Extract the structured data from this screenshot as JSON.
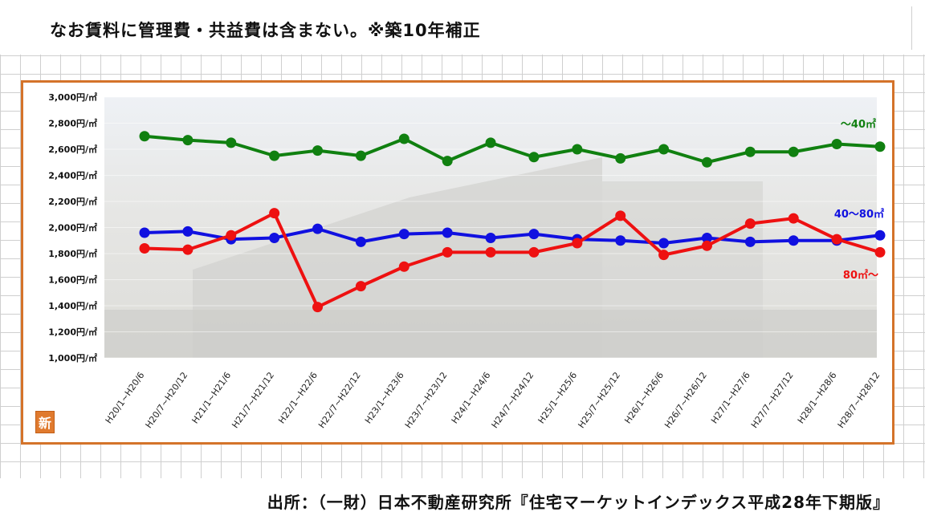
{
  "note": "なお賃料に管理費・共益費は含まない。※築10年補正",
  "source": "出所：（一財）日本不動産研究所『住宅マーケットインデックス平成28年下期版』",
  "badge": "新",
  "chart_data": {
    "type": "line",
    "categories": [
      "H20/1~H20/6",
      "H20/7~H20/12",
      "H21/1~H21/6",
      "H21/7~H21/12",
      "H22/1~H22/6",
      "H22/7~H22/12",
      "H23/1~H23/6",
      "H23/7~H23/12",
      "H24/1~H24/6",
      "H24/7~H24/12",
      "H25/1~H25/6",
      "H25/7~H25/12",
      "H26/1~H26/6",
      "H26/7~H26/12",
      "H27/1~H27/6",
      "H27/7~H27/12",
      "H28/1~H28/6",
      "H28/7~H28/12"
    ],
    "ylim": [
      1000,
      3000
    ],
    "yticks": [
      1000,
      1200,
      1400,
      1600,
      1800,
      2000,
      2200,
      2400,
      2600,
      2800,
      3000
    ],
    "ytick_labels": [
      "1,000円/㎡",
      "1,200円/㎡",
      "1,400円/㎡",
      "1,600円/㎡",
      "1,800円/㎡",
      "2,000円/㎡",
      "2,200円/㎡",
      "2,400円/㎡",
      "2,600円/㎡",
      "2,800円/㎡",
      "3,000円/㎡"
    ],
    "series": [
      {
        "name": "～40㎡",
        "color": "#108010",
        "values": [
          2700,
          2670,
          2650,
          2550,
          2590,
          2550,
          2680,
          2510,
          2650,
          2540,
          2600,
          2530,
          2600,
          2500,
          2580,
          2580,
          2640,
          2620
        ]
      },
      {
        "name": "40～80㎡",
        "color": "#1010e0",
        "values": [
          1960,
          1970,
          1910,
          1920,
          1990,
          1890,
          1950,
          1960,
          1920,
          1950,
          1910,
          1900,
          1880,
          1920,
          1890,
          1900,
          1900,
          1940
        ]
      },
      {
        "name": "80㎡～",
        "color": "#ee1111",
        "values": [
          1840,
          1830,
          1940,
          2110,
          1390,
          1550,
          1700,
          1810,
          1810,
          1810,
          1880,
          2090,
          1790,
          1860,
          2030,
          2070,
          1910,
          1810
        ]
      }
    ],
    "grid": true,
    "legend": "inline-right"
  }
}
